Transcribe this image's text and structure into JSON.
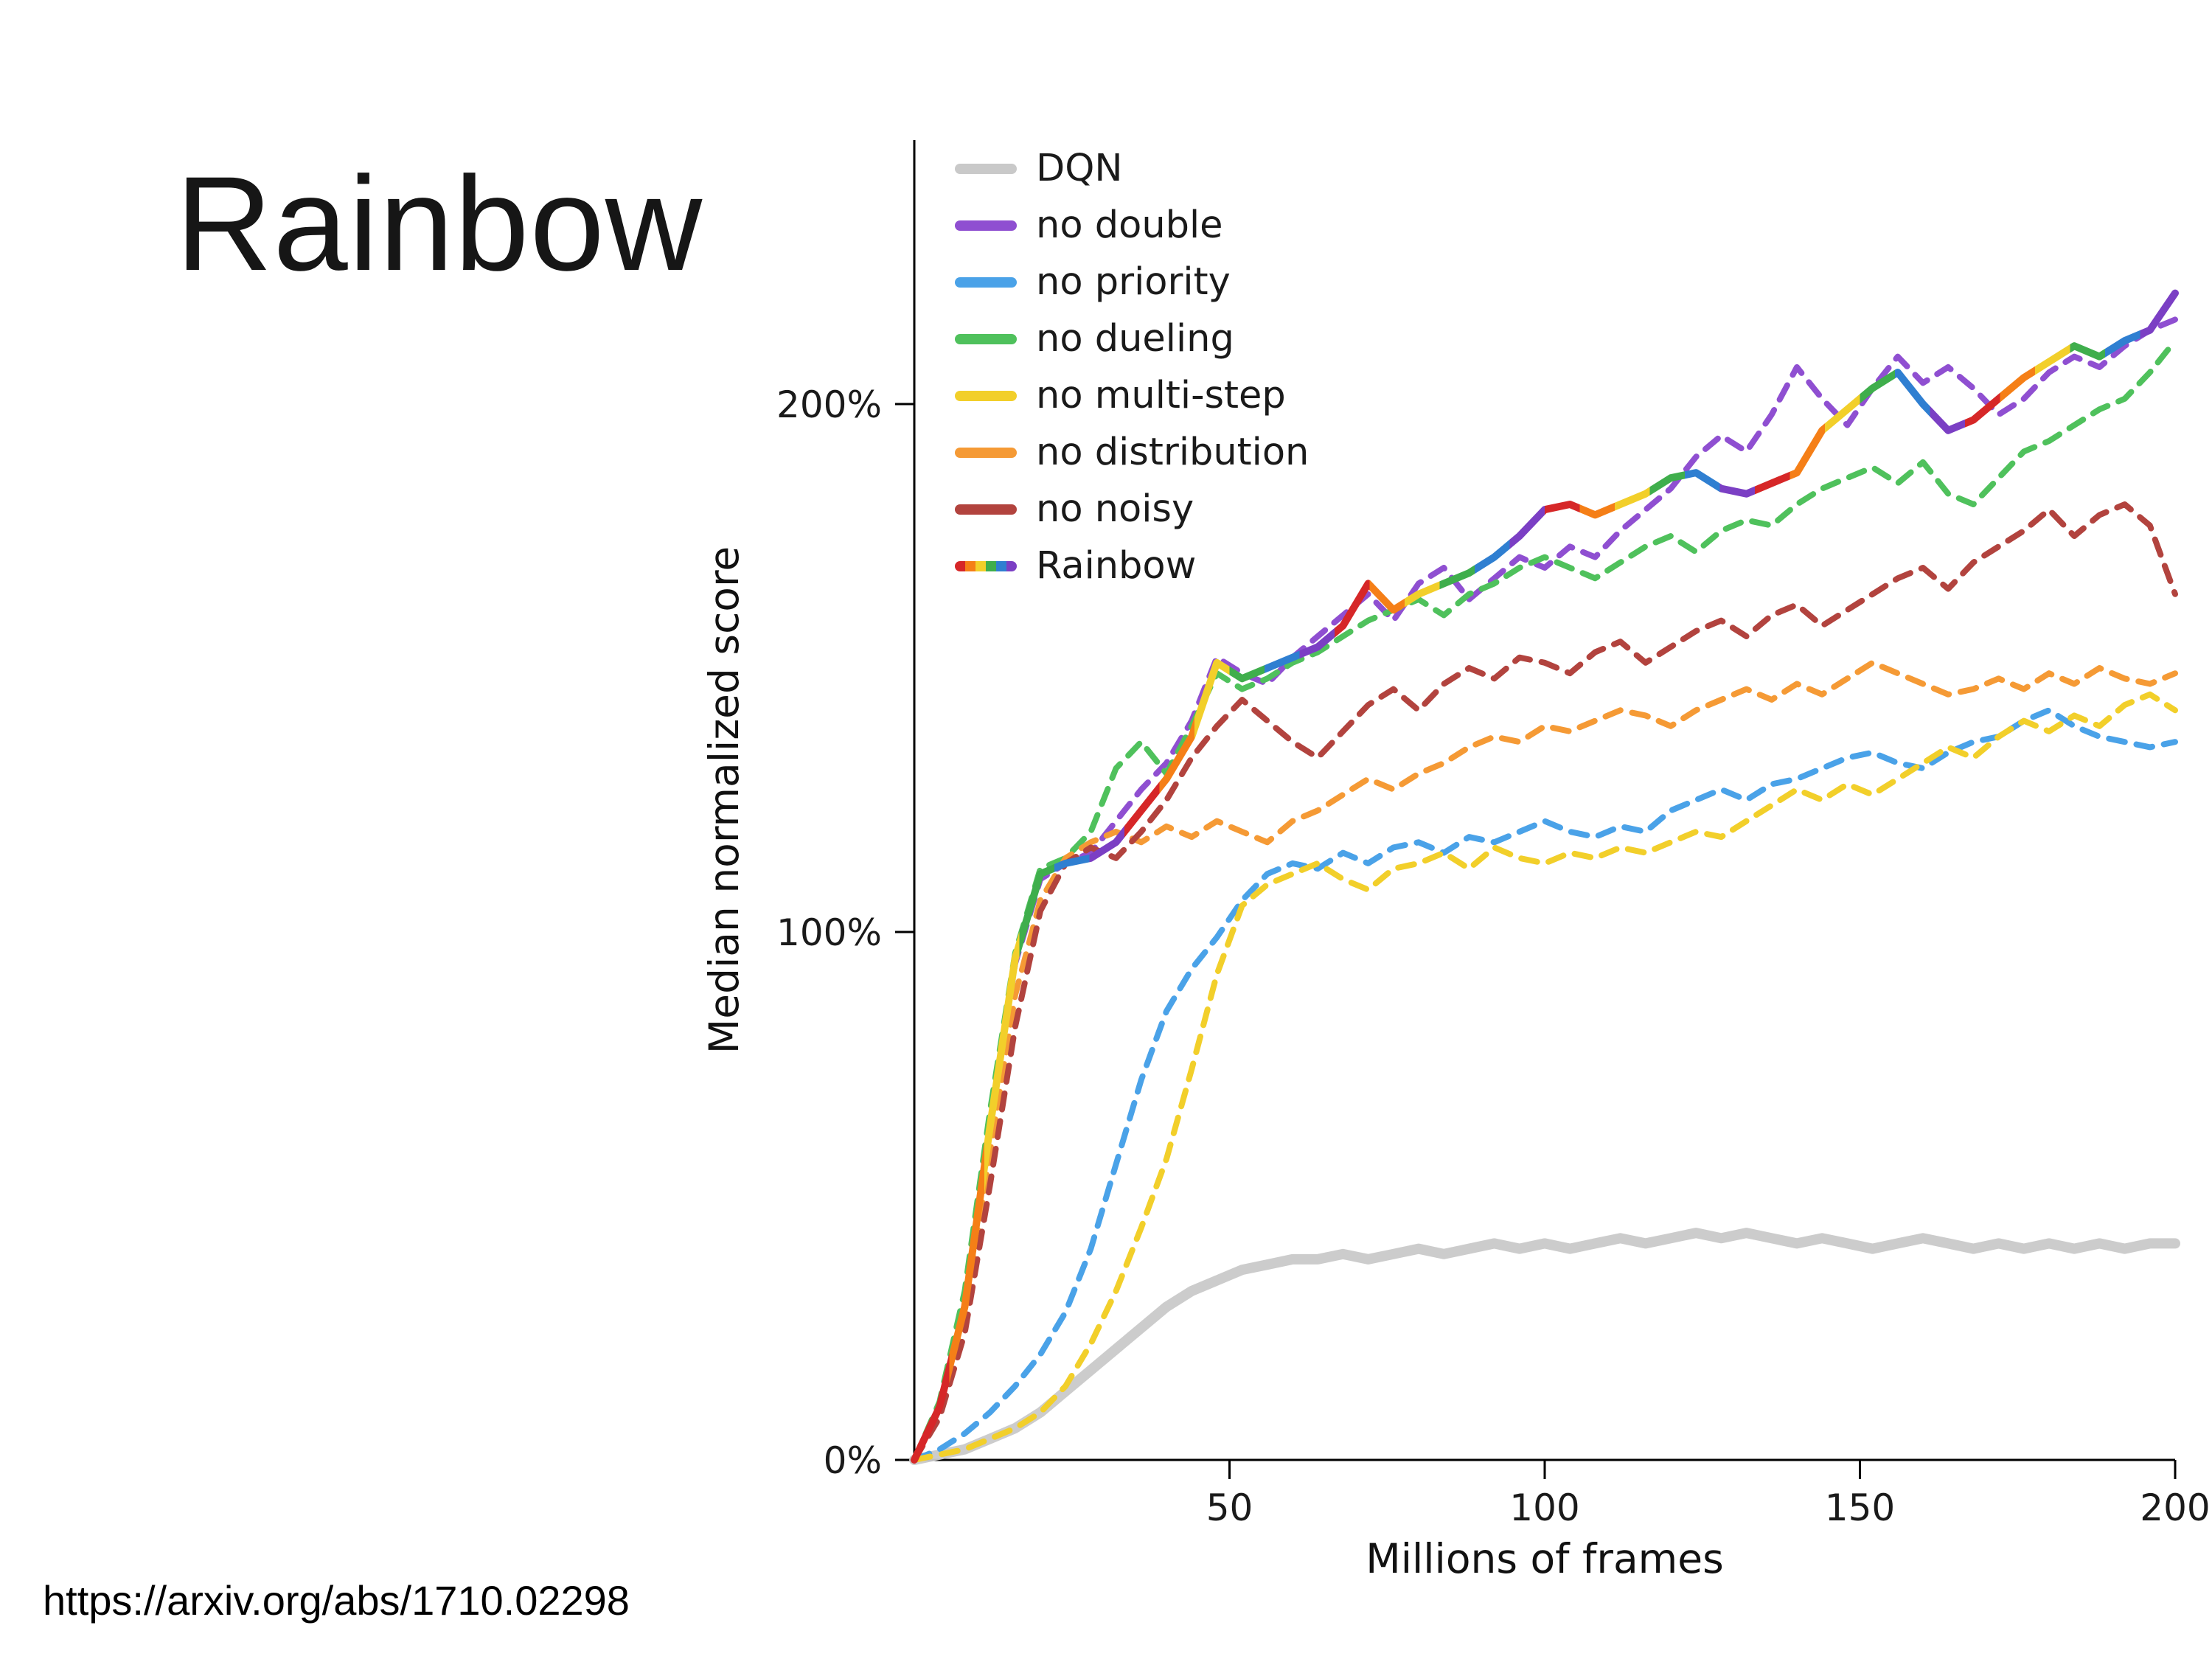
{
  "slide": {
    "title": "Rainbow",
    "source_link": "https://arxiv.org/abs/1710.02298"
  },
  "chart_data": {
    "type": "line",
    "title": "",
    "xlabel": "Millions of frames",
    "ylabel": "Median normalized score",
    "xlim": [
      0,
      200
    ],
    "ylim": [
      0,
      250
    ],
    "grid": false,
    "legend_position": "upper-left",
    "x_ticks": {
      "values": [
        50,
        100,
        150,
        200
      ],
      "labels": [
        "50",
        "100",
        "150",
        "200"
      ]
    },
    "y_ticks": {
      "values": [
        0,
        100,
        200
      ],
      "labels": [
        "0%",
        "100%",
        "200%"
      ]
    },
    "rainbow_palette": [
      "#d62728",
      "#f57f17",
      "#f2cf2a",
      "#3fae4c",
      "#2f7fd1",
      "#7b3fc4"
    ],
    "x": [
      0,
      4,
      8,
      12,
      16,
      20,
      24,
      28,
      32,
      36,
      40,
      44,
      48,
      52,
      56,
      60,
      64,
      68,
      72,
      76,
      80,
      84,
      88,
      92,
      96,
      100,
      104,
      108,
      112,
      116,
      120,
      124,
      128,
      132,
      136,
      140,
      144,
      148,
      152,
      156,
      160,
      164,
      168,
      172,
      176,
      180,
      184,
      188,
      192,
      196,
      200
    ],
    "series": [
      {
        "name": "DQN",
        "color": "#c9c9c9",
        "style": "solid",
        "width": 14,
        "opacity": 0.95,
        "values": [
          0,
          1,
          2,
          4,
          6,
          9,
          13,
          17,
          21,
          25,
          29,
          32,
          34,
          36,
          37,
          38,
          38,
          39,
          38,
          39,
          40,
          39,
          40,
          41,
          40,
          41,
          40,
          41,
          42,
          41,
          42,
          43,
          42,
          43,
          42,
          41,
          42,
          41,
          40,
          41,
          42,
          41,
          40,
          41,
          40,
          41,
          40,
          41,
          40,
          41,
          41
        ]
      },
      {
        "name": "no double",
        "color": "#8f4fd1",
        "style": "dashed",
        "width": 8,
        "values": [
          0,
          10,
          30,
          62,
          94,
          110,
          113,
          115,
          121,
          127,
          132,
          140,
          152,
          149,
          147,
          152,
          156,
          160,
          164,
          159,
          166,
          169,
          163,
          167,
          171,
          169,
          173,
          171,
          176,
          180,
          184,
          190,
          194,
          191,
          198,
          207,
          201,
          196,
          203,
          209,
          204,
          207,
          203,
          198,
          201,
          206,
          209,
          207,
          211,
          214,
          216
        ]
      },
      {
        "name": "no priority",
        "color": "#4aa2e8",
        "style": "dashed",
        "width": 8,
        "values": [
          0,
          2,
          5,
          9,
          14,
          20,
          28,
          40,
          56,
          72,
          85,
          93,
          99,
          106,
          111,
          113,
          112,
          115,
          113,
          116,
          117,
          115,
          118,
          117,
          119,
          121,
          119,
          118,
          120,
          119,
          123,
          125,
          127,
          125,
          128,
          129,
          131,
          133,
          134,
          132,
          131,
          134,
          136,
          137,
          140,
          142,
          139,
          137,
          136,
          135,
          136
        ]
      },
      {
        "name": "no dueling",
        "color": "#4fc15c",
        "style": "dashed",
        "width": 8,
        "values": [
          0,
          11,
          32,
          66,
          96,
          112,
          114,
          119,
          131,
          136,
          130,
          139,
          149,
          146,
          148,
          151,
          153,
          156,
          159,
          161,
          163,
          160,
          164,
          166,
          169,
          171,
          169,
          167,
          170,
          173,
          175,
          172,
          176,
          178,
          177,
          181,
          184,
          186,
          188,
          185,
          189,
          183,
          181,
          186,
          191,
          193,
          196,
          199,
          201,
          206,
          212
        ]
      },
      {
        "name": "no multi-step",
        "color": "#f2cf2a",
        "style": "dashed",
        "width": 8,
        "values": [
          0,
          1,
          2,
          4,
          6,
          9,
          14,
          22,
          32,
          44,
          57,
          74,
          92,
          105,
          109,
          111,
          113,
          110,
          108,
          112,
          113,
          115,
          112,
          116,
          114,
          113,
          115,
          114,
          116,
          115,
          117,
          119,
          118,
          121,
          124,
          127,
          125,
          128,
          126,
          129,
          132,
          135,
          133,
          137,
          140,
          138,
          141,
          139,
          143,
          145,
          142
        ]
      },
      {
        "name": "no distribution",
        "color": "#f59a35",
        "style": "dashed",
        "width": 8,
        "values": [
          0,
          9,
          27,
          58,
          88,
          106,
          114,
          117,
          119,
          117,
          120,
          118,
          121,
          119,
          117,
          121,
          123,
          126,
          129,
          127,
          130,
          132,
          135,
          137,
          136,
          139,
          138,
          140,
          142,
          141,
          139,
          142,
          144,
          146,
          144,
          147,
          145,
          148,
          151,
          149,
          147,
          145,
          146,
          148,
          146,
          149,
          147,
          150,
          148,
          147,
          149
        ]
      },
      {
        "name": "no noisy",
        "color": "#b2433e",
        "style": "dashed",
        "width": 8,
        "values": [
          0,
          8,
          24,
          52,
          82,
          104,
          113,
          116,
          114,
          119,
          125,
          133,
          139,
          144,
          140,
          136,
          133,
          138,
          143,
          146,
          142,
          147,
          150,
          148,
          152,
          151,
          149,
          153,
          155,
          151,
          154,
          157,
          159,
          156,
          160,
          162,
          158,
          161,
          164,
          167,
          169,
          165,
          170,
          173,
          176,
          180,
          175,
          179,
          181,
          177,
          164
        ]
      },
      {
        "name": "Rainbow",
        "color": "rainbow",
        "style": "solid",
        "width": 10,
        "values": [
          0,
          10,
          29,
          63,
          95,
          111,
          113,
          114,
          117,
          123,
          129,
          137,
          151,
          148,
          150,
          152,
          154,
          158,
          166,
          161,
          164,
          166,
          168,
          171,
          175,
          180,
          181,
          179,
          181,
          183,
          186,
          187,
          184,
          183,
          185,
          187,
          195,
          199,
          203,
          206,
          200,
          195,
          197,
          201,
          205,
          208,
          211,
          209,
          212,
          214,
          221
        ]
      }
    ]
  }
}
